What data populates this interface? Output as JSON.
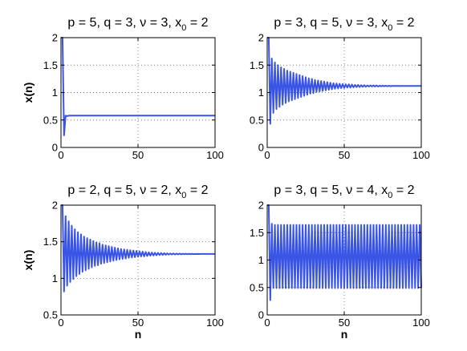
{
  "chart_data": [
    {
      "type": "line",
      "title": "p = 5, q = 3, ν = 3, x",
      "title_sub": "0",
      "title_tail": " = 2",
      "xlabel": "",
      "ylabel": "x(n)",
      "xlim": [
        0,
        100
      ],
      "ylim": [
        0,
        2
      ],
      "xticks": [
        "0",
        "50",
        "100"
      ],
      "yticks": [
        "0",
        "0.5",
        "1",
        "1.5",
        "2"
      ],
      "grid": true,
      "color": "#3a55e6",
      "series": [
        {
          "x": [
            0,
            1,
            2,
            3,
            4,
            5,
            6,
            8,
            10,
            20,
            40,
            60,
            80,
            100
          ],
          "y": [
            2,
            2,
            0.22,
            0.58,
            0.57,
            0.58,
            0.58,
            0.58,
            0.58,
            0.58,
            0.58,
            0.58,
            0.58,
            0.58
          ]
        }
      ]
    },
    {
      "type": "line",
      "title": "p = 3, q = 5, ν = 3, x",
      "title_sub": "0",
      "title_tail": " = 2",
      "xlabel": "",
      "ylabel": "",
      "xlim": [
        0,
        100
      ],
      "ylim": [
        0,
        2
      ],
      "xticks": [
        "0",
        "50",
        "100"
      ],
      "yticks": [
        "0",
        "0.5",
        "1",
        "1.5",
        "2"
      ],
      "grid": true,
      "color": "#3a55e6",
      "series": [
        {
          "x": [
            0,
            1,
            2,
            3,
            4,
            5,
            6,
            7,
            8,
            9,
            10,
            11,
            12,
            13,
            14,
            15,
            16,
            17,
            18,
            19,
            20,
            21,
            22,
            23,
            24,
            25,
            26,
            27,
            28,
            29,
            30,
            31,
            32,
            33,
            34,
            35,
            36,
            37,
            38,
            39,
            40,
            41,
            42,
            43,
            44,
            45,
            46,
            47,
            48,
            49,
            50,
            51,
            52,
            53,
            54,
            55,
            56,
            57,
            58,
            59,
            60,
            61,
            62,
            63,
            64,
            65,
            66,
            67,
            68,
            69,
            70,
            71,
            72,
            73,
            74,
            75,
            76,
            77,
            78,
            79,
            80,
            81,
            82,
            83,
            84,
            85,
            86,
            87,
            88,
            89,
            90,
            91,
            92,
            93,
            94,
            95,
            96,
            97,
            98,
            99,
            100
          ],
          "y": [
            2,
            2,
            0.43,
            1.62,
            0.63,
            1.55,
            0.7,
            1.5,
            0.74,
            1.46,
            0.78,
            1.43,
            0.81,
            1.4,
            0.84,
            1.38,
            0.86,
            1.36,
            0.88,
            1.34,
            0.9,
            1.32,
            0.92,
            1.3,
            0.94,
            1.28,
            0.96,
            1.26,
            0.98,
            1.25,
            0.99,
            1.23,
            1.01,
            1.22,
            1.02,
            1.21,
            1.03,
            1.2,
            1.04,
            1.19,
            1.05,
            1.18,
            1.06,
            1.17,
            1.07,
            1.165,
            1.075,
            1.16,
            1.08,
            1.155,
            1.085,
            1.15,
            1.09,
            1.15,
            1.09,
            1.145,
            1.095,
            1.14,
            1.1,
            1.14,
            1.1,
            1.135,
            1.105,
            1.135,
            1.105,
            1.13,
            1.11,
            1.13,
            1.11,
            1.13,
            1.11,
            1.13,
            1.11,
            1.125,
            1.115,
            1.125,
            1.115,
            1.125,
            1.115,
            1.125,
            1.115,
            1.122,
            1.118,
            1.122,
            1.118,
            1.122,
            1.118,
            1.12,
            1.12,
            1.12,
            1.12,
            1.12,
            1.12,
            1.12,
            1.12,
            1.12,
            1.12,
            1.12,
            1.12,
            1.12,
            1.12
          ]
        }
      ]
    },
    {
      "type": "line",
      "title": "p = 2, q = 5, ν = 2, x",
      "title_sub": "0",
      "title_tail": " = 2",
      "xlabel": "n",
      "ylabel": "x(n)",
      "xlim": [
        0,
        100
      ],
      "ylim": [
        0.5,
        2
      ],
      "xticks": [
        "0",
        "50",
        "100"
      ],
      "yticks": [
        "0.5",
        "1",
        "1.5",
        "2"
      ],
      "grid": true,
      "color": "#3a55e6",
      "series": [
        {
          "x": [
            0,
            1,
            2,
            3,
            4,
            5,
            6,
            7,
            8,
            9,
            10,
            11,
            12,
            13,
            14,
            15,
            16,
            17,
            18,
            19,
            20,
            21,
            22,
            23,
            24,
            25,
            26,
            27,
            28,
            29,
            30,
            31,
            32,
            33,
            34,
            35,
            36,
            37,
            38,
            39,
            40,
            41,
            42,
            43,
            44,
            45,
            46,
            47,
            48,
            49,
            50,
            51,
            52,
            53,
            54,
            55,
            56,
            57,
            58,
            59,
            60,
            61,
            62,
            63,
            64,
            65,
            66,
            67,
            68,
            69,
            70,
            71,
            72,
            73,
            74,
            75,
            76,
            77,
            78,
            79,
            80,
            81,
            82,
            83,
            84,
            85,
            86,
            87,
            88,
            89,
            90,
            91,
            92,
            93,
            94,
            95,
            96,
            97,
            98,
            99,
            100
          ],
          "y": [
            2,
            2,
            0.82,
            1.85,
            0.9,
            1.78,
            0.95,
            1.72,
            0.99,
            1.67,
            1.03,
            1.63,
            1.06,
            1.6,
            1.09,
            1.57,
            1.11,
            1.55,
            1.13,
            1.53,
            1.15,
            1.51,
            1.17,
            1.49,
            1.18,
            1.48,
            1.2,
            1.46,
            1.21,
            1.45,
            1.22,
            1.44,
            1.23,
            1.43,
            1.24,
            1.42,
            1.25,
            1.41,
            1.26,
            1.4,
            1.265,
            1.395,
            1.27,
            1.39,
            1.28,
            1.385,
            1.285,
            1.38,
            1.29,
            1.375,
            1.295,
            1.37,
            1.3,
            1.365,
            1.3,
            1.36,
            1.305,
            1.355,
            1.31,
            1.352,
            1.312,
            1.35,
            1.315,
            1.348,
            1.318,
            1.346,
            1.32,
            1.344,
            1.322,
            1.342,
            1.324,
            1.34,
            1.326,
            1.34,
            1.326,
            1.338,
            1.328,
            1.338,
            1.328,
            1.336,
            1.33,
            1.336,
            1.33,
            1.335,
            1.331,
            1.335,
            1.331,
            1.334,
            1.332,
            1.334,
            1.332,
            1.333,
            1.333,
            1.333,
            1.333,
            1.333,
            1.333,
            1.333,
            1.333,
            1.333,
            1.333
          ]
        }
      ]
    },
    {
      "type": "line",
      "title": "p = 3, q = 5, ν = 4, x",
      "title_sub": "0",
      "title_tail": " = 2",
      "xlabel": "n",
      "ylabel": "",
      "xlim": [
        0,
        100
      ],
      "ylim": [
        0,
        2
      ],
      "xticks": [
        "0",
        "50",
        "100"
      ],
      "yticks": [
        "0",
        "0.5",
        "1",
        "1.5",
        "2"
      ],
      "grid": true,
      "color": "#3a55e6",
      "series": [
        {
          "x": [
            0,
            1,
            2,
            3,
            4,
            5,
            6,
            7,
            8,
            9,
            10,
            11,
            12,
            13,
            14,
            15,
            16,
            17,
            18,
            19,
            20,
            21,
            22,
            23,
            24,
            25,
            26,
            27,
            28,
            29,
            30,
            31,
            32,
            33,
            34,
            35,
            36,
            37,
            38,
            39,
            40,
            41,
            42,
            43,
            44,
            45,
            46,
            47,
            48,
            49,
            50,
            51,
            52,
            53,
            54,
            55,
            56,
            57,
            58,
            59,
            60,
            61,
            62,
            63,
            64,
            65,
            66,
            67,
            68,
            69,
            70,
            71,
            72,
            73,
            74,
            75,
            76,
            77,
            78,
            79,
            80,
            81,
            82,
            83,
            84,
            85,
            86,
            87,
            88,
            89,
            90,
            91,
            92,
            93,
            94,
            95,
            96,
            97,
            98,
            99,
            100
          ],
          "y": [
            2,
            2,
            0.27,
            1.66,
            0.49,
            1.64,
            0.49,
            1.64,
            0.49,
            1.64,
            0.49,
            1.64,
            0.49,
            1.64,
            0.49,
            1.64,
            0.49,
            1.64,
            0.49,
            1.64,
            0.49,
            1.64,
            0.49,
            1.64,
            0.49,
            1.64,
            0.49,
            1.64,
            0.49,
            1.64,
            0.49,
            1.64,
            0.49,
            1.64,
            0.49,
            1.64,
            0.49,
            1.64,
            0.49,
            1.64,
            0.49,
            1.64,
            0.49,
            1.64,
            0.49,
            1.64,
            0.49,
            1.64,
            0.49,
            1.64,
            0.49,
            1.64,
            0.49,
            1.64,
            0.49,
            1.64,
            0.49,
            1.64,
            0.49,
            1.64,
            0.49,
            1.64,
            0.49,
            1.64,
            0.49,
            1.64,
            0.49,
            1.64,
            0.49,
            1.64,
            0.49,
            1.64,
            0.49,
            1.64,
            0.49,
            1.64,
            0.49,
            1.64,
            0.49,
            1.64,
            0.49,
            1.64,
            0.49,
            1.64,
            0.49,
            1.64,
            0.49,
            1.64,
            0.49,
            1.64,
            0.49,
            1.64,
            0.49,
            1.64,
            0.49,
            1.64,
            0.49,
            1.64,
            0.49,
            1.64,
            0.49
          ]
        }
      ]
    }
  ]
}
